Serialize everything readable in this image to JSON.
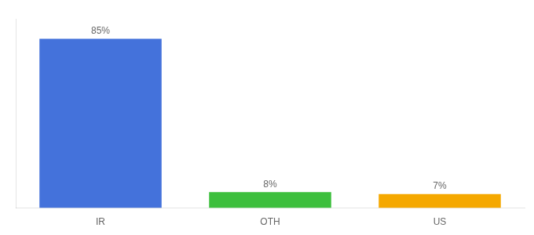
{
  "chart_data": {
    "type": "bar",
    "categories": [
      "IR",
      "OTH",
      "US"
    ],
    "values": [
      85,
      8,
      7
    ],
    "value_labels": [
      "85%",
      "8%",
      "7%"
    ],
    "colors": [
      "#4472db",
      "#3dbf3d",
      "#f5a800"
    ],
    "ylim": [
      0,
      95
    ],
    "yticks": [],
    "grid": false,
    "data_labels": true,
    "tick_labels": "x"
  }
}
